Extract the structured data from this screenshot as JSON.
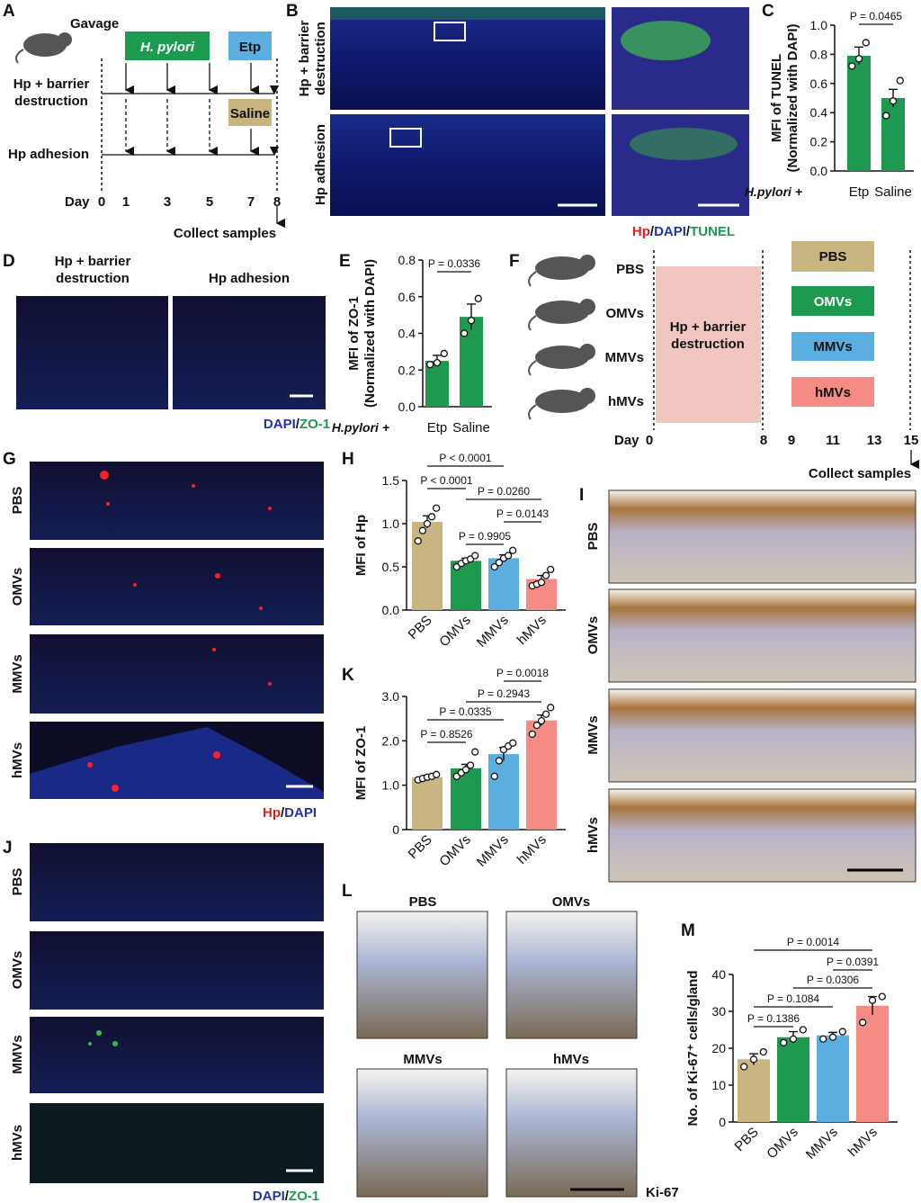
{
  "panel_letters": [
    "A",
    "B",
    "C",
    "D",
    "E",
    "F",
    "G",
    "H",
    "I",
    "J",
    "K",
    "L",
    "M"
  ],
  "groups": [
    "PBS",
    "OMVs",
    "MMVs",
    "hMVs"
  ],
  "panel_a": {
    "gavage": "Gavage",
    "hpylori": "H. pylori",
    "etp": "Etp",
    "saline": "Saline",
    "barrier": [
      "Hp + barrier",
      "destruction"
    ],
    "adhesion": "Hp adhesion",
    "day": "Day",
    "days": [
      "0",
      "1",
      "3",
      "5",
      "7",
      "8"
    ],
    "collect": "Collect samples"
  },
  "panel_b": {
    "row1": [
      "Hp + barrier",
      "destruction"
    ],
    "row2": "Hp adhesion",
    "stain": [
      "Hp",
      "DAPI",
      "TUNEL"
    ],
    "separator": "/"
  },
  "panel_d": {
    "col1": [
      "Hp + barrier",
      "destruction"
    ],
    "col2": "Hp adhesion",
    "stain": [
      "DAPI",
      "ZO-1"
    ]
  },
  "panel_f": {
    "box": [
      "Hp + barrier",
      "destruction"
    ],
    "day": "Day",
    "days": [
      "0",
      "8",
      "9",
      "11",
      "13",
      "15"
    ],
    "collect": "Collect samples"
  },
  "panel_g": {
    "stain": [
      "Hp",
      "DAPI"
    ]
  },
  "panel_j": {
    "stain": [
      "DAPI",
      "ZO-1"
    ]
  },
  "panel_l": {
    "stain": "Ki-67"
  },
  "chart_data": [
    {
      "type": "bar",
      "ylabel": [
        "MFI of TUNEL",
        "(Normalized with DAPI)"
      ],
      "xprefix": "H.pylori +",
      "categories": [
        "Etp",
        "Saline"
      ],
      "values": [
        0.79,
        0.5
      ],
      "errors": [
        0.06,
        0.06
      ],
      "points": [
        [
          0.72,
          0.77,
          0.88
        ],
        [
          0.38,
          0.48,
          0.62
        ]
      ],
      "colors": [
        "#1e9a50",
        "#1e9a50"
      ],
      "ylim": [
        0,
        1
      ],
      "yticks": [
        {
          "value": 0,
          "label": "0.0"
        },
        0.2,
        0.4,
        0.6,
        0.8,
        {
          "value": 1,
          "label": "1.0"
        }
      ],
      "comparisons": [
        {
          "from": 0,
          "to": 1,
          "label": "P = 0.0465"
        }
      ]
    },
    {
      "type": "bar",
      "ylabel": [
        "MFI of ZO-1",
        "(Normalized with DAPI)"
      ],
      "xprefix": "H.pylori +",
      "categories": [
        "Etp",
        "Saline"
      ],
      "values": [
        0.25,
        0.49
      ],
      "errors": [
        0.03,
        0.07
      ],
      "points": [
        [
          0.23,
          0.24,
          0.29
        ],
        [
          0.4,
          0.47,
          0.59
        ]
      ],
      "colors": [
        "#1e9a50",
        "#1e9a50"
      ],
      "ylim": [
        0,
        0.8
      ],
      "yticks": [
        {
          "value": 0,
          "label": "0.0"
        },
        0.2,
        0.4,
        0.6,
        0.8
      ],
      "comparisons": [
        {
          "from": 0,
          "to": 1,
          "label": "P = 0.0336"
        }
      ]
    },
    {
      "type": "bar",
      "ylabel": [
        "MFI of Hp"
      ],
      "categories": [
        "PBS",
        "OMVs",
        "MMVs",
        "hMVs"
      ],
      "values": [
        1.02,
        0.57,
        0.6,
        0.36
      ],
      "errors": [
        0.07,
        0.03,
        0.04,
        0.04
      ],
      "points": [
        [
          0.8,
          0.92,
          1.0,
          1.08,
          1.18
        ],
        [
          0.5,
          0.54,
          0.57,
          0.59,
          0.63
        ],
        [
          0.5,
          0.55,
          0.6,
          0.63,
          0.69
        ],
        [
          0.28,
          0.3,
          0.32,
          0.4,
          0.47
        ]
      ],
      "colors": [
        "#c8b57f",
        "#1e9a50",
        "#5aaee0",
        "#f48b84"
      ],
      "ylim": [
        0,
        1.5
      ],
      "yticks": [
        {
          "value": 0,
          "label": "0.0"
        },
        0.5,
        {
          "value": 1,
          "label": "1.0"
        },
        1.5
      ],
      "comparisons": [
        {
          "from": 0,
          "to": 2,
          "label": "P < 0.0001"
        },
        {
          "from": 0,
          "to": 1,
          "label": "P < 0.0001"
        },
        {
          "from": 1,
          "to": 3,
          "label": "P = 0.0260"
        },
        {
          "from": 2,
          "to": 3,
          "label": "P = 0.0143"
        },
        {
          "from": 1,
          "to": 2,
          "label": "P = 0.9905"
        }
      ]
    },
    {
      "type": "bar",
      "ylabel": [
        "MFI of ZO-1"
      ],
      "categories": [
        "PBS",
        "OMVs",
        "MMVs",
        "hMVs"
      ],
      "values": [
        1.18,
        1.38,
        1.7,
        2.46
      ],
      "errors": [
        0.04,
        0.09,
        0.15,
        0.12
      ],
      "points": [
        [
          1.12,
          1.15,
          1.18,
          1.2,
          1.24
        ],
        [
          1.2,
          1.28,
          1.35,
          1.45,
          1.75
        ],
        [
          1.2,
          1.55,
          1.8,
          1.88,
          1.95
        ],
        [
          2.15,
          2.35,
          2.45,
          2.6,
          2.75
        ]
      ],
      "colors": [
        "#c8b57f",
        "#1e9a50",
        "#5aaee0",
        "#f48b84"
      ],
      "ylim": [
        0,
        3
      ],
      "yticks": [
        0,
        {
          "value": 1,
          "label": "1.0"
        },
        {
          "value": 2,
          "label": "2.0"
        },
        {
          "value": 3,
          "label": "3.0"
        }
      ],
      "comparisons": [
        {
          "from": 2,
          "to": 3,
          "label": "P = 0.0018"
        },
        {
          "from": 1,
          "to": 3,
          "label": "P = 0.2943"
        },
        {
          "from": 0,
          "to": 2,
          "label": "P = 0.0335"
        },
        {
          "from": 0,
          "to": 1,
          "label": "P = 0.8526"
        }
      ]
    },
    {
      "type": "bar",
      "ylabel": [
        "No. of Ki-67⁺ cells/gland"
      ],
      "categories": [
        "PBS",
        "OMVs",
        "MMVs",
        "hMVs"
      ],
      "values": [
        17,
        23,
        23.5,
        31.5
      ],
      "errors": [
        1.5,
        1.5,
        0.8,
        2.5
      ],
      "points": [
        [
          15,
          17,
          19
        ],
        [
          21.5,
          22.5,
          25
        ],
        [
          22.5,
          23,
          24.5
        ],
        [
          27,
          33,
          34
        ]
      ],
      "colors": [
        "#c8b57f",
        "#1e9a50",
        "#5aaee0",
        "#f48b84"
      ],
      "ylim": [
        0,
        40
      ],
      "yticks": [
        0,
        10,
        20,
        30,
        40
      ],
      "comparisons": [
        {
          "from": 0,
          "to": 3,
          "label": "P = 0.0014"
        },
        {
          "from": 2,
          "to": 3,
          "label": "P = 0.0391"
        },
        {
          "from": 1,
          "to": 3,
          "label": "P = 0.0306"
        },
        {
          "from": 0,
          "to": 2,
          "label": "P = 0.1084"
        },
        {
          "from": 0,
          "to": 1,
          "label": "P = 0.1386"
        }
      ]
    }
  ]
}
